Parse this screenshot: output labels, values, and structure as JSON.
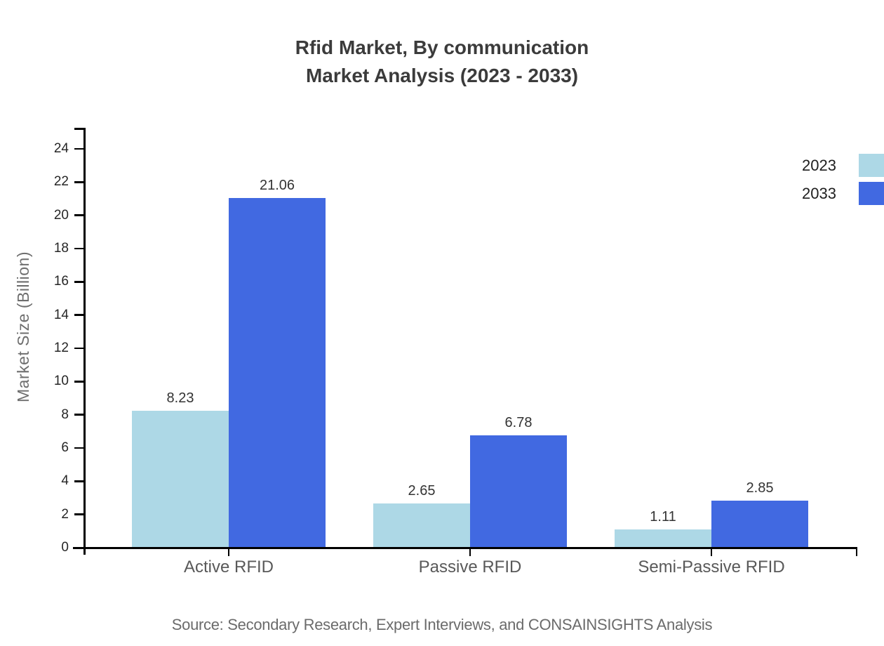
{
  "chart_data": {
    "type": "bar",
    "title_line1": "Rfid Market, By communication",
    "title_line2": "Market Analysis (2023 - 2033)",
    "ylabel": "Market Size (Billion)",
    "xlabel": "",
    "categories": [
      "Active RFID",
      "Passive RFID",
      "Semi-Passive RFID"
    ],
    "series": [
      {
        "name": "2023",
        "color": "#ADD8E6",
        "values": [
          8.23,
          2.65,
          1.11
        ]
      },
      {
        "name": "2033",
        "color": "#4169E1",
        "values": [
          21.06,
          6.78,
          2.85
        ]
      }
    ],
    "yticks": [
      0,
      2,
      4,
      6,
      8,
      10,
      12,
      14,
      16,
      18,
      20,
      22,
      24
    ],
    "ylim": [
      0,
      24
    ],
    "grid": false,
    "value_labels": true,
    "legend": {
      "position": "top-right",
      "items": [
        "2023",
        "2033"
      ]
    },
    "source": "Source: Secondary Research, Expert Interviews, and CONSAINSIGHTS Analysis"
  },
  "colors": {
    "background": "#FFFFFF",
    "axis": "#000000",
    "title": "#3B3B3B",
    "tick_label": "#262626",
    "category_label": "#595959",
    "value_label": "#333333",
    "axis_title": "#6E6E6E",
    "legend_label": "#1F1F1F",
    "source": "#6B6B6B"
  }
}
